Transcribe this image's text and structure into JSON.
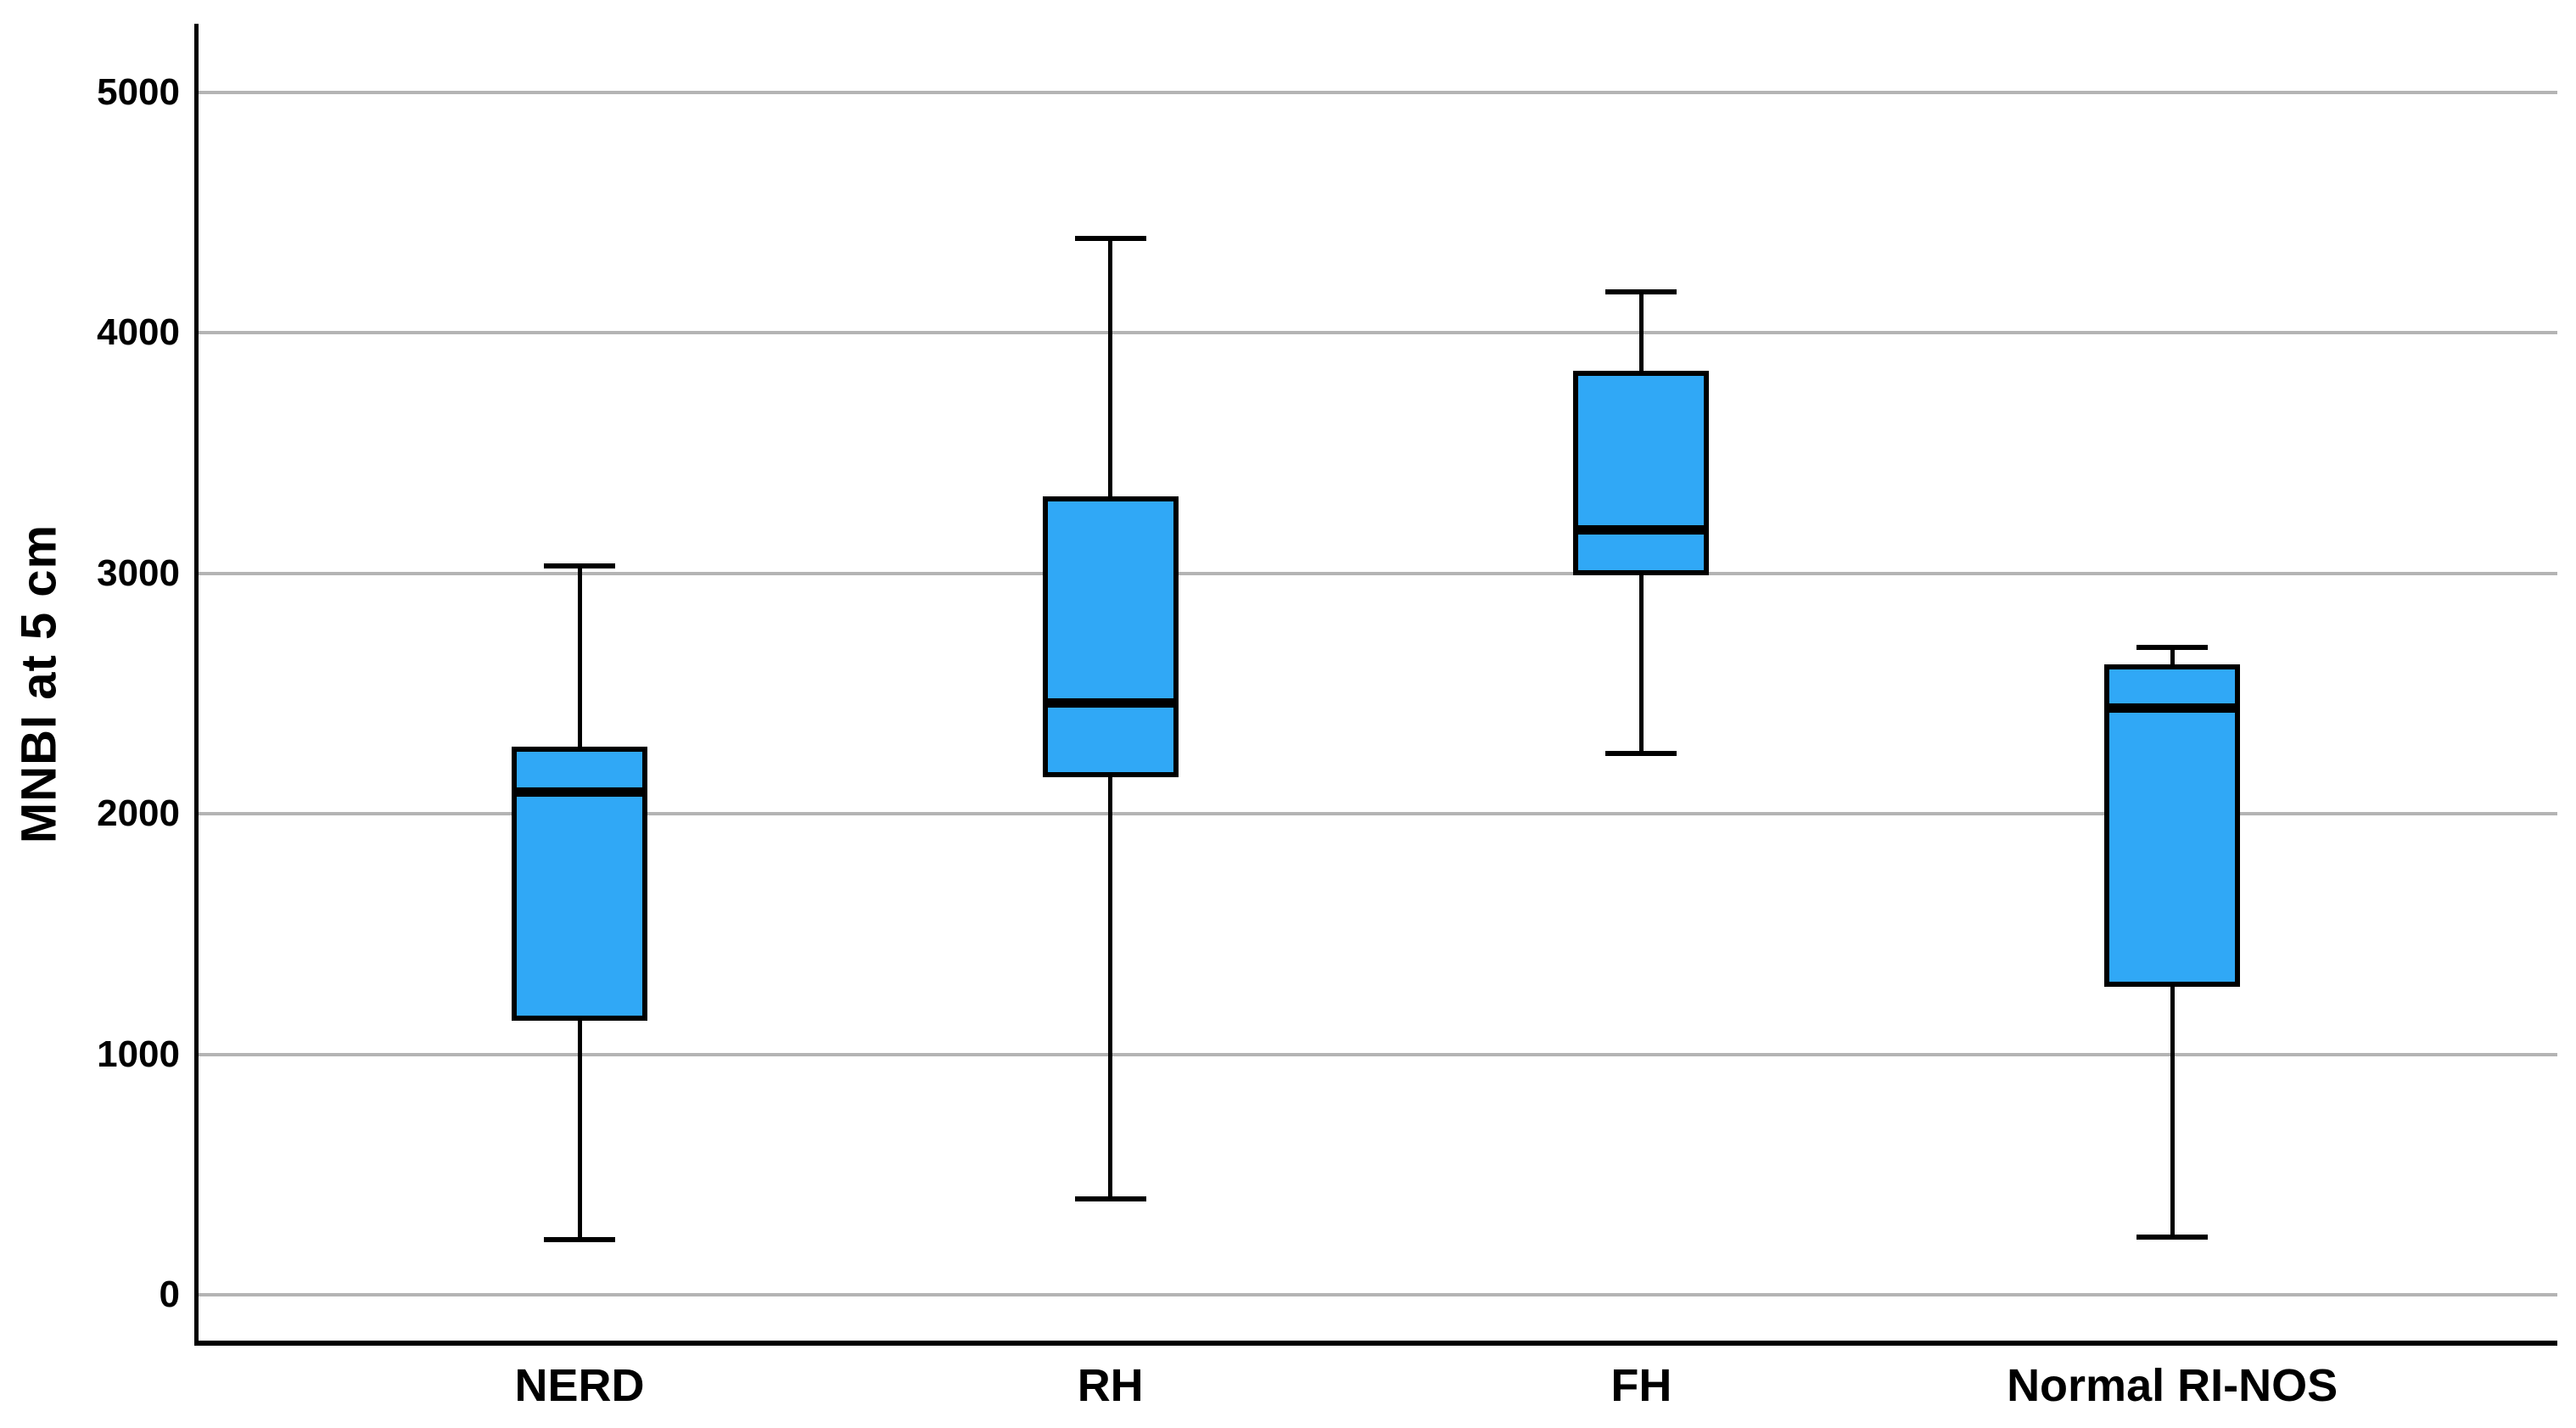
{
  "chart_data": {
    "type": "boxplot",
    "title": "",
    "ylabel": "MNBI at 5 cm",
    "xlabel": "",
    "categories": [
      "NERD",
      "RH",
      "FH",
      "Normal RI-NOS"
    ],
    "yticks": [
      0,
      1000,
      2000,
      3000,
      4000,
      5000
    ],
    "ylim": [
      -190,
      5280
    ],
    "grid": "horizontal",
    "legend": "none",
    "series": [
      {
        "category": "NERD",
        "min": 230,
        "q1": 1140,
        "median": 2090,
        "q3": 2280,
        "max": 3030
      },
      {
        "category": "RH",
        "min": 400,
        "q1": 2150,
        "median": 2460,
        "q3": 3320,
        "max": 4390
      },
      {
        "category": "FH",
        "min": 2250,
        "q1": 2990,
        "median": 3180,
        "q3": 3840,
        "max": 4170
      },
      {
        "category": "Normal RI-NOS",
        "min": 240,
        "q1": 1280,
        "median": 2440,
        "q3": 2620,
        "max": 2690
      }
    ],
    "colors": {
      "box_fill": "#30a8f6",
      "box_border": "#000000",
      "median": "#000000",
      "whisker": "#000000",
      "gridline": "#b4b4b4",
      "axis": "#000000",
      "text": "#000000",
      "background": "#ffffff"
    }
  }
}
